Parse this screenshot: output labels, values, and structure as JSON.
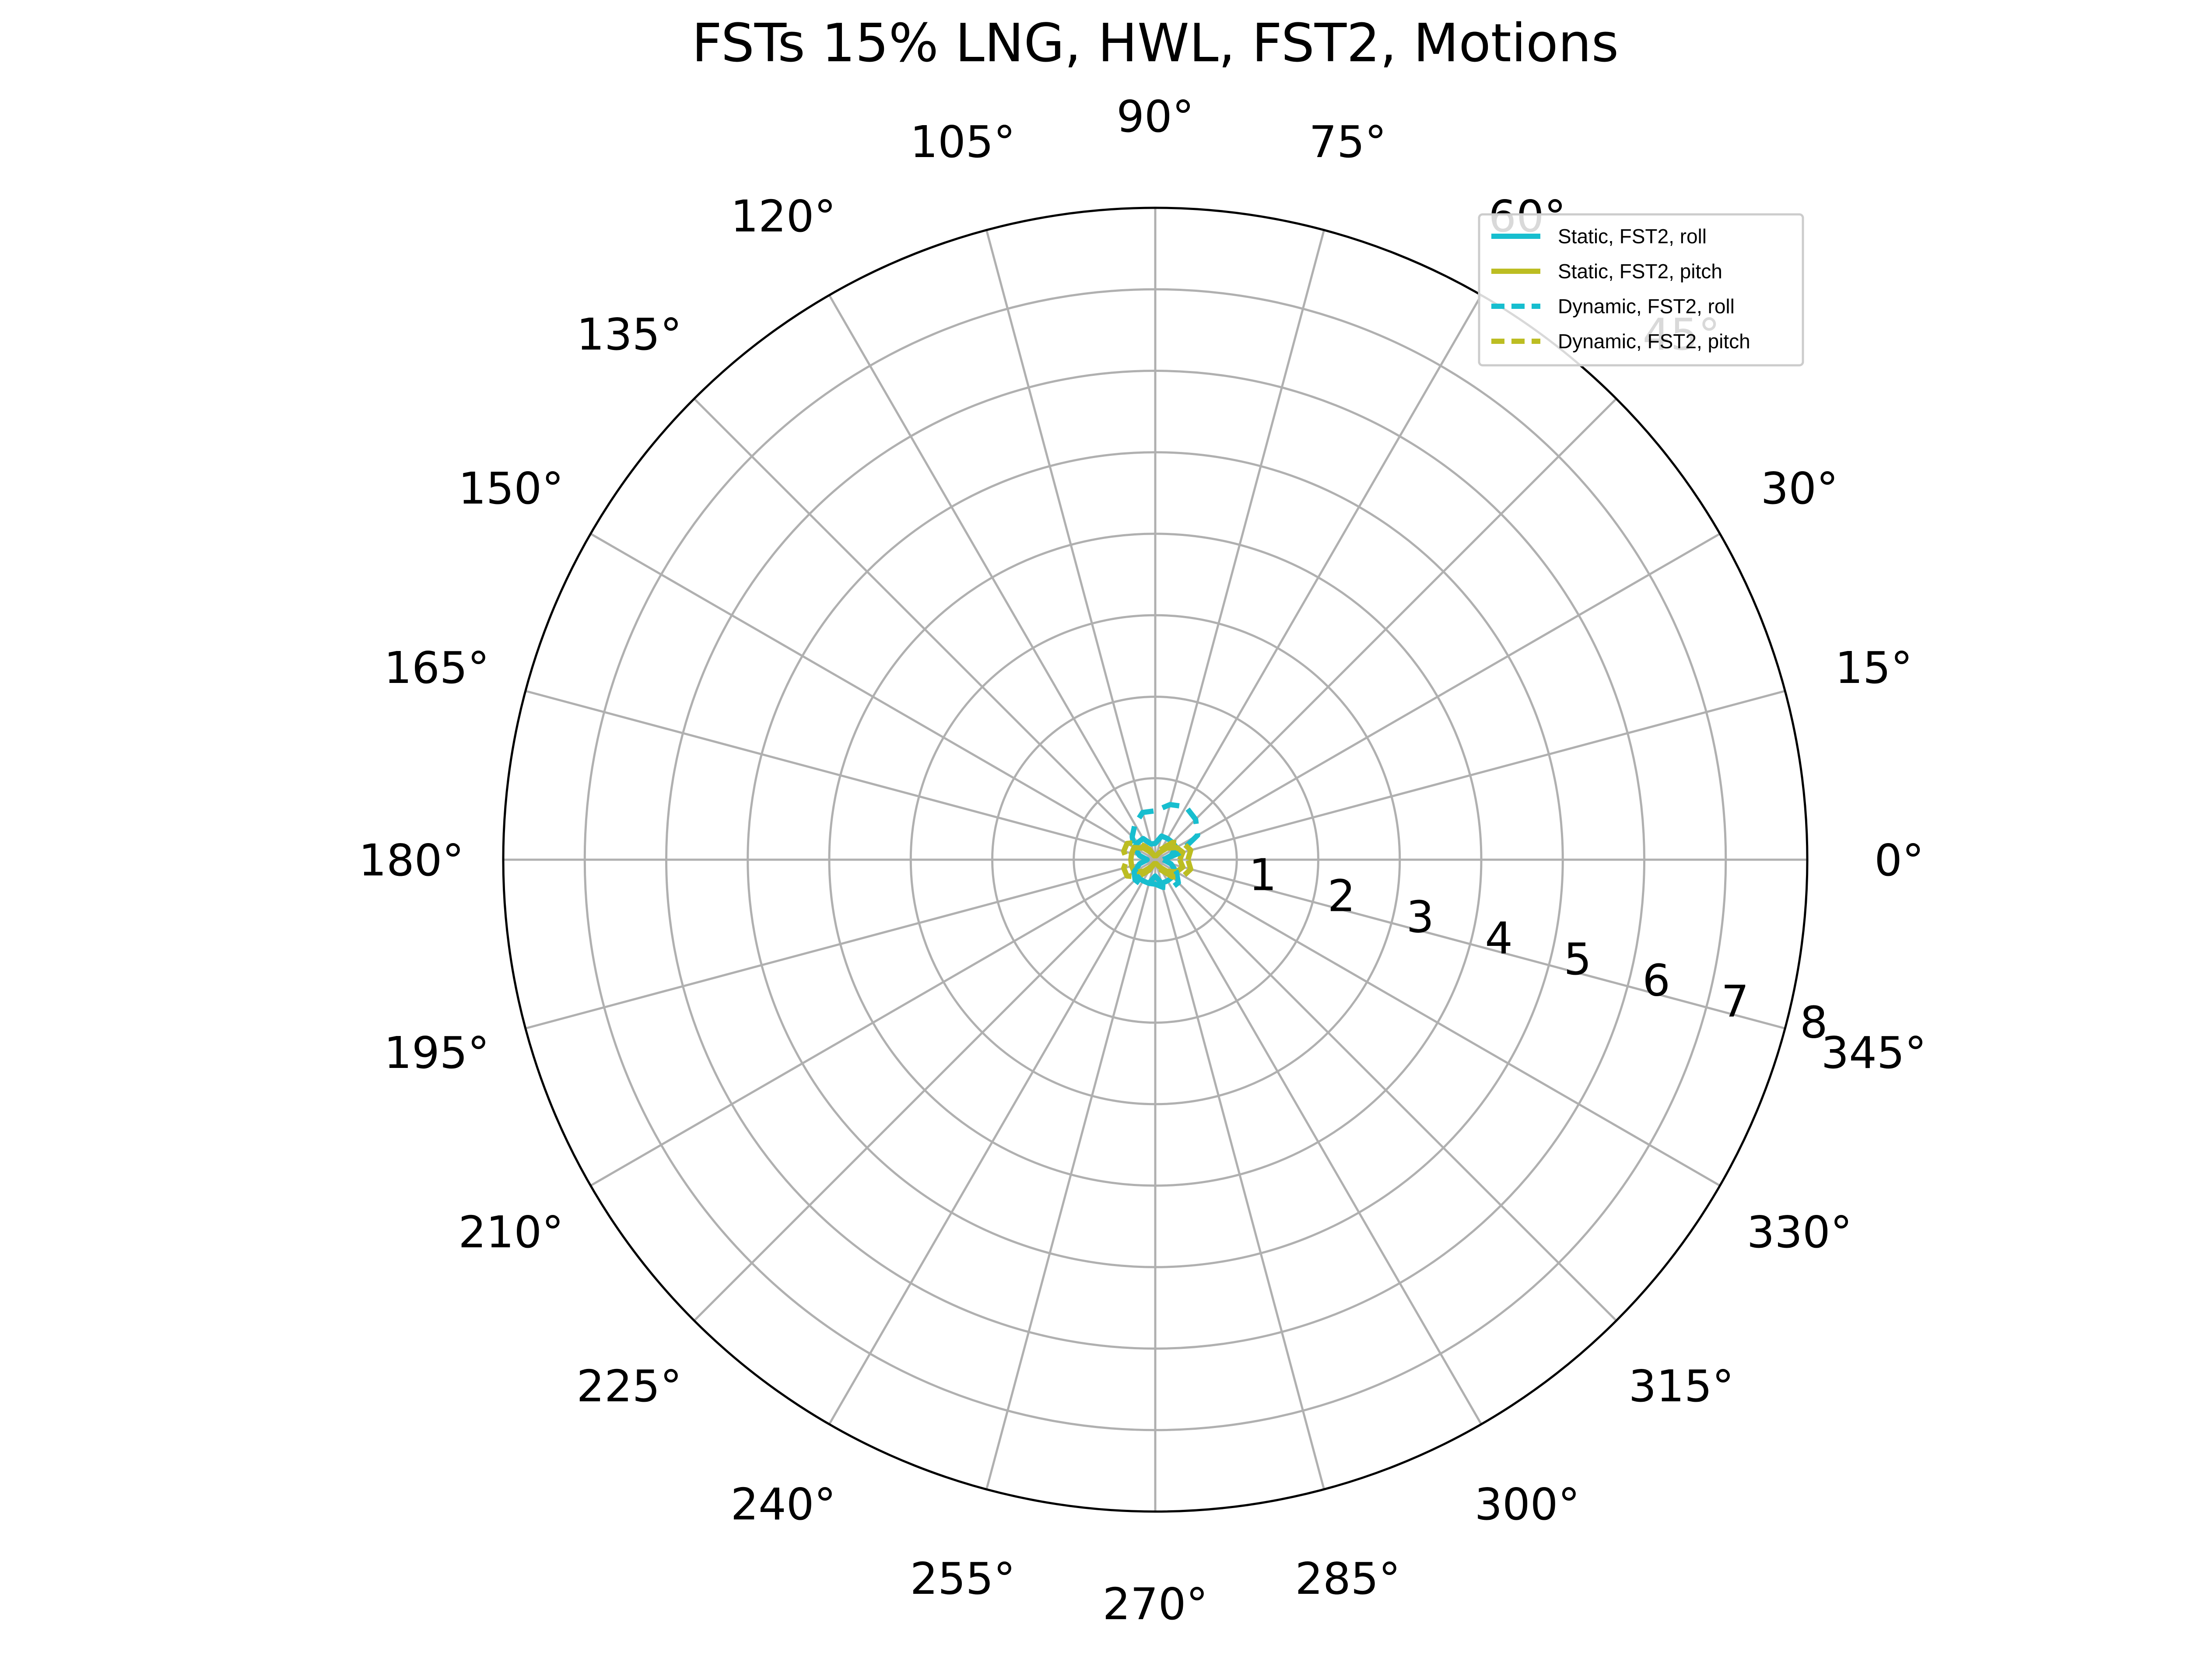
{
  "chart_data": {
    "type": "polar-line",
    "title": "FSTs 15% LNG, HWL, FST2, Motions",
    "theta_unit": "degrees",
    "theta_ticks": [
      0,
      15,
      30,
      45,
      60,
      75,
      90,
      105,
      120,
      135,
      150,
      165,
      180,
      195,
      210,
      225,
      240,
      255,
      270,
      285,
      300,
      315,
      330,
      345
    ],
    "theta_tick_labels": [
      "0°",
      "15°",
      "30°",
      "45°",
      "60°",
      "75°",
      "90°",
      "105°",
      "120°",
      "135°",
      "150°",
      "165°",
      "180°",
      "195°",
      "210°",
      "225°",
      "240°",
      "255°",
      "270°",
      "285°",
      "300°",
      "315°",
      "330°",
      "345°"
    ],
    "r_ticks": [
      1,
      2,
      3,
      4,
      5,
      6,
      7,
      8
    ],
    "r_tick_labels": [
      "1",
      "2",
      "3",
      "4",
      "5",
      "6",
      "7",
      "8"
    ],
    "rlim": [
      0,
      8
    ],
    "r_label_angle": 345,
    "grid": true,
    "legend_position": "top-right",
    "series": [
      {
        "name": "Static, FST2, roll",
        "color": "#17becf",
        "dash": "solid",
        "theta": [
          0,
          15,
          30,
          45,
          60,
          75,
          90,
          105,
          120,
          135,
          150,
          165,
          180,
          195,
          210,
          225,
          240,
          255,
          270,
          285,
          300,
          315,
          330,
          345,
          360
        ],
        "r": [
          0.1,
          0.2,
          0.3,
          0.3,
          0.3,
          0.3,
          0.2,
          0.2,
          0.3,
          0.3,
          0.3,
          0.2,
          0.1,
          0.2,
          0.3,
          0.3,
          0.3,
          0.3,
          0.2,
          0.3,
          0.3,
          0.3,
          0.3,
          0.2,
          0.1
        ]
      },
      {
        "name": "Static, FST2, pitch",
        "color": "#bcbd22",
        "dash": "solid",
        "theta": [
          0,
          15,
          30,
          45,
          60,
          75,
          90,
          105,
          120,
          135,
          150,
          165,
          180,
          195,
          210,
          225,
          240,
          255,
          270,
          285,
          300,
          315,
          330,
          345,
          360
        ],
        "r": [
          0.3,
          0.35,
          0.3,
          0.2,
          0.1,
          0.05,
          0.05,
          0.05,
          0.1,
          0.2,
          0.3,
          0.3,
          0.3,
          0.3,
          0.3,
          0.2,
          0.1,
          0.05,
          0.05,
          0.05,
          0.1,
          0.2,
          0.3,
          0.35,
          0.3
        ]
      },
      {
        "name": "Dynamic, FST2, roll",
        "color": "#17becf",
        "dash": "dashed",
        "theta": [
          0,
          15,
          30,
          45,
          60,
          75,
          90,
          105,
          120,
          135,
          150,
          165,
          180,
          195,
          210,
          225,
          240,
          255,
          270,
          285,
          300,
          315,
          330,
          345,
          360
        ],
        "r": [
          0.1,
          0.3,
          0.6,
          0.7,
          0.75,
          0.7,
          0.6,
          0.6,
          0.5,
          0.4,
          0.3,
          0.2,
          0.1,
          0.2,
          0.3,
          0.35,
          0.35,
          0.3,
          0.3,
          0.35,
          0.4,
          0.4,
          0.3,
          0.2,
          0.1
        ]
      },
      {
        "name": "Dynamic, FST2, pitch",
        "color": "#bcbd22",
        "dash": "dashed",
        "theta": [
          0,
          15,
          30,
          45,
          60,
          75,
          90,
          105,
          120,
          135,
          150,
          165,
          180,
          195,
          210,
          225,
          240,
          255,
          270,
          285,
          300,
          315,
          330,
          345,
          360
        ],
        "r": [
          0.4,
          0.45,
          0.4,
          0.3,
          0.15,
          0.05,
          0.05,
          0.05,
          0.15,
          0.3,
          0.4,
          0.4,
          0.35,
          0.4,
          0.4,
          0.3,
          0.15,
          0.05,
          0.05,
          0.05,
          0.15,
          0.3,
          0.4,
          0.45,
          0.4
        ]
      }
    ]
  }
}
